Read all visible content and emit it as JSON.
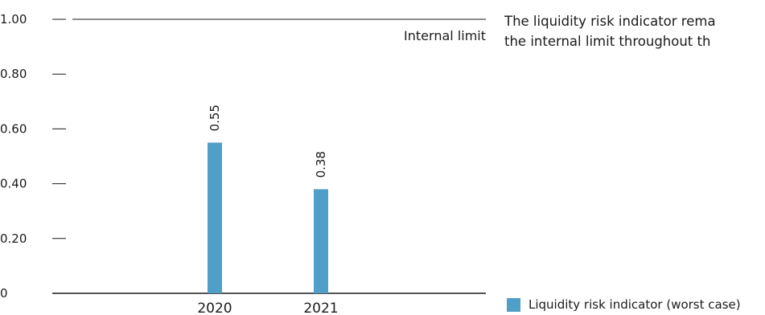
{
  "commentary": {
    "line1": "The liquidity risk indicator rema",
    "line2": "the internal limit throughout th"
  },
  "legend": {
    "label": "Liquidity risk indicator (worst case)",
    "color": "#4f9fc8"
  },
  "chart_data": {
    "type": "bar",
    "categories": [
      "2020",
      "2021"
    ],
    "values": [
      0.55,
      0.38
    ],
    "value_labels": [
      "0.55",
      "0.38"
    ],
    "ylim": [
      0,
      1.0
    ],
    "yticks": [
      0,
      0.2,
      0.4,
      0.6,
      0.8,
      1.0
    ],
    "ytick_labels": [
      "0",
      "0.20",
      "0.40",
      "0.60",
      "0.80",
      "1.00"
    ],
    "reference_line": {
      "value": 1.0,
      "label": "Internal limit"
    },
    "bar_color": "#4f9fc8",
    "grid": false,
    "legend_position": "bottom-right"
  }
}
